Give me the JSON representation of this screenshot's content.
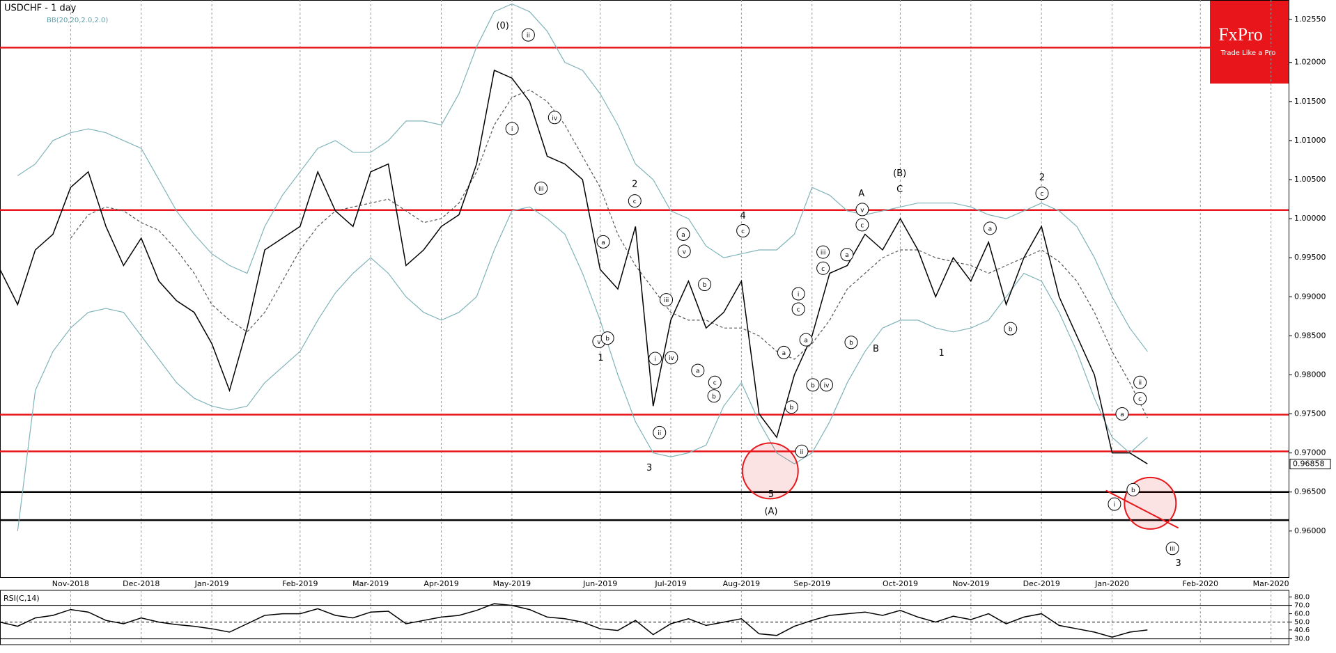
{
  "chart_data": [
    {
      "type": "line",
      "title": "USDCHF - 1 day",
      "subtitle": "BB(20,20,2.0,2.0)",
      "categories": [
        null,
        null,
        null,
        null,
        "Nov-2018",
        null,
        null,
        null,
        "Dec-2018",
        null,
        null,
        null,
        "Jan-2019",
        null,
        null,
        null,
        null,
        "Feb-2019",
        null,
        null,
        null,
        "Mar-2019",
        null,
        null,
        null,
        "Apr-2019",
        null,
        null,
        null,
        "May-2019",
        null,
        null,
        null,
        null,
        "Jun-2019",
        null,
        null,
        null,
        "Jul-2019",
        null,
        null,
        null,
        "Aug-2019",
        null,
        null,
        null,
        "Sep-2019",
        null,
        null,
        null,
        null,
        "Oct-2019",
        null,
        null,
        null,
        "Nov-2019",
        null,
        null,
        null,
        "Dec-2019",
        null,
        null,
        null,
        "Jan-2020",
        null,
        null,
        null,
        null,
        "Feb-2020",
        null,
        null,
        null,
        "Mar-2020"
      ],
      "series": [
        {
          "color": "#000000",
          "values": [
            0.9935,
            0.989,
            0.996,
            0.998,
            1.004,
            1.006,
            0.999,
            0.994,
            0.9975,
            0.992,
            0.9895,
            0.988,
            0.984,
            0.978,
            0.986,
            0.996,
            0.9975,
            0.999,
            1.006,
            1.001,
            0.999,
            1.006,
            1.007,
            0.994,
            0.996,
            0.999,
            1.0005,
            1.007,
            1.019,
            1.018,
            1.015,
            1.008,
            1.007,
            1.005,
            0.9935,
            0.991,
            0.999,
            0.976,
            0.987,
            0.992,
            0.986,
            0.988,
            0.992,
            0.975,
            0.972,
            0.98,
            0.985,
            0.993,
            0.994,
            0.998,
            0.996,
            1.0,
            0.996,
            0.99,
            0.995,
            0.992,
            0.997,
            0.989,
            0.995,
            0.999,
            0.99,
            0.985,
            0.98,
            0.97,
            0.97,
            0.9686,
            null,
            null,
            null,
            null,
            null,
            null,
            null
          ]
        },
        {
          "color": "#7fb3b9",
          "values": [
            null,
            1.0055,
            1.007,
            1.01,
            1.011,
            1.0115,
            1.011,
            1.01,
            1.009,
            1.005,
            1.001,
            0.998,
            0.9955,
            0.994,
            0.993,
            0.999,
            1.003,
            1.006,
            1.009,
            1.01,
            1.0085,
            1.0085,
            1.01,
            1.0125,
            1.0125,
            1.012,
            1.016,
            1.022,
            1.0265,
            1.0275,
            1.0265,
            1.024,
            1.02,
            1.019,
            1.016,
            1.012,
            1.007,
            1.005,
            1.001,
            1.0,
            0.9965,
            0.995,
            0.9955,
            0.996,
            0.996,
            0.998,
            1.004,
            1.003,
            1.001,
            1.0005,
            1.001,
            1.0015,
            1.002,
            1.002,
            1.002,
            1.0015,
            1.0005,
            1.0,
            1.001,
            1.002,
            1.001,
            0.999,
            0.995,
            0.99,
            0.986,
            0.983,
            null,
            null,
            null,
            null,
            null,
            null,
            null
          ]
        },
        {
          "color": "#555555",
          "line_style": "dashed",
          "values": [
            null,
            null,
            null,
            null,
            0.9975,
            1.0005,
            1.0015,
            1.001,
            0.9995,
            0.9985,
            0.996,
            0.993,
            0.989,
            0.987,
            0.9855,
            0.988,
            0.992,
            0.996,
            0.999,
            1.001,
            1.0015,
            1.002,
            1.0025,
            1.001,
            0.9995,
            1.0,
            1.002,
            1.006,
            1.012,
            1.0155,
            1.0165,
            1.015,
            1.012,
            1.008,
            1.004,
            0.998,
            0.994,
            0.991,
            0.988,
            0.987,
            0.987,
            0.986,
            0.986,
            0.985,
            0.983,
            0.982,
            0.984,
            0.987,
            0.991,
            0.993,
            0.995,
            0.996,
            0.996,
            0.995,
            0.9945,
            0.994,
            0.993,
            0.994,
            0.995,
            0.996,
            0.9945,
            0.992,
            0.988,
            0.983,
            0.979,
            0.9745,
            null,
            null,
            null,
            null,
            null,
            null,
            null
          ]
        },
        {
          "color": "#7fb3b9",
          "values": [
            null,
            0.96,
            0.978,
            0.983,
            0.986,
            0.988,
            0.9885,
            0.988,
            0.985,
            0.982,
            0.979,
            0.977,
            0.976,
            0.9755,
            0.976,
            0.979,
            0.981,
            0.983,
            0.987,
            0.9905,
            0.993,
            0.995,
            0.993,
            0.99,
            0.988,
            0.987,
            0.988,
            0.99,
            0.996,
            1.001,
            1.0015,
            1.0,
            0.998,
            0.993,
            0.987,
            0.98,
            0.974,
            0.97,
            0.9695,
            0.97,
            0.971,
            0.976,
            0.979,
            0.974,
            0.97,
            0.9686,
            0.97,
            0.974,
            0.979,
            0.983,
            0.986,
            0.987,
            0.987,
            0.986,
            0.9855,
            0.986,
            0.987,
            0.99,
            0.993,
            0.992,
            0.988,
            0.983,
            0.977,
            0.972,
            0.97,
            0.972,
            null,
            null,
            null,
            null,
            null,
            null,
            null
          ]
        }
      ],
      "levels": [
        {
          "value": 1.0219,
          "color": "#e8161b"
        },
        {
          "value": 1.0011,
          "color": "#e8161b"
        },
        {
          "value": 0.9749,
          "color": "#e8161b"
        },
        {
          "value": 0.9702,
          "color": "#e8161b"
        },
        {
          "value": 0.965,
          "color": "#000000"
        },
        {
          "value": 0.9614,
          "color": "#000000"
        }
      ],
      "last_price": 0.96858,
      "ylim": [
        0.9541,
        1.028
      ],
      "yticks": [
        {
          "value": 0.96,
          "label": "0.96000"
        },
        {
          "value": 0.965,
          "label": "0.96500"
        },
        {
          "value": 0.97,
          "label": "0.97000"
        },
        {
          "value": 0.975,
          "label": "0.97500"
        },
        {
          "value": 0.98,
          "label": "0.98000"
        },
        {
          "value": 0.985,
          "label": "0.98500"
        },
        {
          "value": 0.99,
          "label": "0.99000"
        },
        {
          "value": 0.995,
          "label": "0.99500"
        },
        {
          "value": 1.0,
          "label": "1.00000"
        },
        {
          "value": 1.005,
          "label": "1.00500"
        },
        {
          "value": 1.01,
          "label": "1.01000"
        },
        {
          "value": 1.015,
          "label": "1.01500"
        },
        {
          "value": 1.02,
          "label": "1.02000"
        },
        {
          "value": 1.0255,
          "label": "1.02550"
        }
      ],
      "annotations": [
        "(0)",
        "ii",
        "i",
        "iv",
        "iii",
        "2",
        "c",
        "a",
        "v",
        "b",
        "1",
        "iii",
        "i",
        "iv",
        "ii",
        "3",
        "a",
        "v",
        "b",
        "a",
        "c",
        "b",
        "4",
        "c",
        "5",
        "(A)",
        "i",
        "c",
        "a",
        "a",
        "b",
        "b",
        "iv",
        "ii",
        "iii",
        "c",
        "a",
        "b",
        "A",
        "v",
        "c",
        "B",
        "(B)",
        "C",
        "1",
        "a",
        "b",
        "2",
        "c",
        "ii",
        "c",
        "a",
        "b",
        "i",
        "iii",
        "3"
      ]
    },
    {
      "type": "line",
      "title": "RSI(C,14)",
      "series": [
        {
          "color": "#000000",
          "values": [
            50,
            45,
            55,
            58,
            65,
            62,
            52,
            48,
            55,
            50,
            47,
            45,
            42,
            38,
            48,
            58,
            60,
            60,
            66,
            58,
            55,
            62,
            63,
            48,
            52,
            56,
            58,
            64,
            72,
            70,
            65,
            56,
            54,
            50,
            42,
            40,
            52,
            35,
            48,
            54,
            46,
            50,
            54,
            36,
            34,
            45,
            52,
            58,
            60,
            62,
            58,
            64,
            56,
            50,
            57,
            53,
            60,
            48,
            56,
            60,
            46,
            42,
            38,
            32,
            38,
            40.6,
            null,
            null,
            null,
            null,
            null,
            null,
            null
          ]
        }
      ],
      "ylim": [
        23,
        88
      ],
      "yticks": [
        {
          "value": 80,
          "label": "80.0"
        },
        {
          "value": 70,
          "label": "70.0"
        },
        {
          "value": 60,
          "label": "60.0"
        },
        {
          "value": 50,
          "label": "50.0"
        },
        {
          "value": 40.6,
          "label": "40.6"
        },
        {
          "value": 30,
          "label": "30.0"
        }
      ],
      "reference_lines": [
        70,
        50,
        30
      ]
    }
  ],
  "logo": {
    "name": "FxPro",
    "tagline": "Trade Like a Pro"
  }
}
